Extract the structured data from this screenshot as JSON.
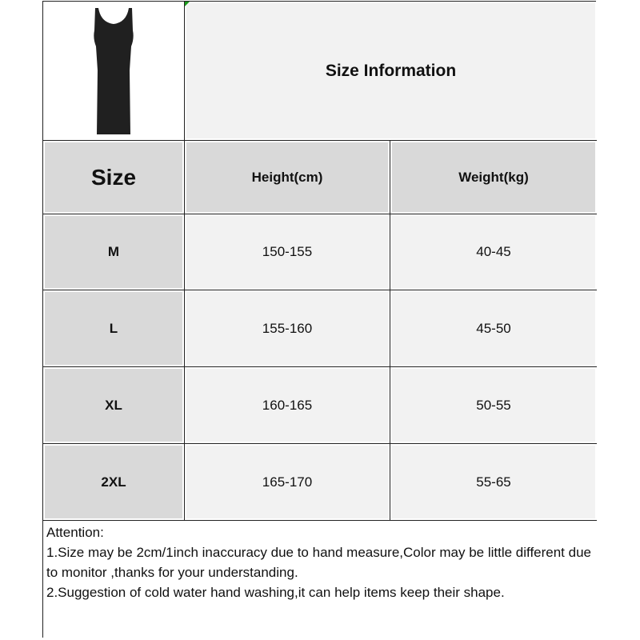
{
  "title": "Size Information",
  "headers": {
    "size": "Size",
    "height": "Height(cm)",
    "weight": "Weight(kg)"
  },
  "rows": [
    {
      "size": "M",
      "height": "150-155",
      "weight": "40-45"
    },
    {
      "size": "L",
      "height": "155-160",
      "weight": "45-50"
    },
    {
      "size": "XL",
      "height": "160-165",
      "weight": "50-55"
    },
    {
      "size": "2XL",
      "height": "165-170",
      "weight": "55-65"
    }
  ],
  "notes": [
    "Attention:",
    "1.Size may be 2cm/1inch inaccuracy due to hand measure,Color may be little different due to monitor ,thanks for your understanding.",
    "2.Suggestion of cold water hand washing,it can help items keep their shape."
  ],
  "colors": {
    "header_bg": "#d9d9d9",
    "cell_bg": "#f2f2f2",
    "corner_marker": "#1a9a1a"
  },
  "icons": {
    "product": "black-sleeveless-dress-image"
  }
}
